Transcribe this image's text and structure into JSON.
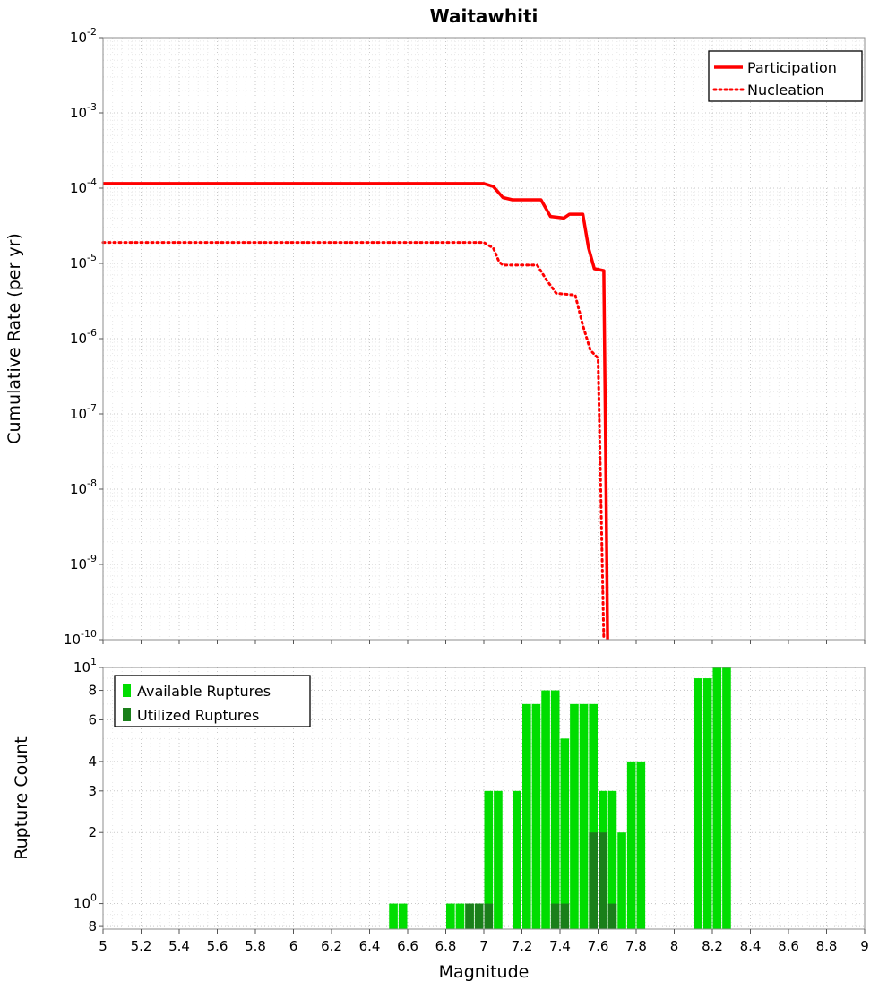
{
  "title": "Waitawhiti",
  "colors": {
    "participation": "#ff0000",
    "nucleation": "#ff0000",
    "available": "#00dd00",
    "utilized": "#1a7f1a",
    "grid_major": "#c9c9c9",
    "grid_minor": "#e7e7e7",
    "border": "#8c8c8c",
    "tick": "#555555"
  },
  "chart_data": [
    {
      "type": "line",
      "title": "Waitawhiti",
      "ylabel": "Cumulative Rate (per yr)",
      "xlim": [
        5,
        9
      ],
      "ylim": [
        1e-10,
        0.01
      ],
      "x_tick_step": 0.2,
      "y_scale": "log",
      "grid": true,
      "legend_position": "top-right",
      "series": [
        {
          "name": "Participation",
          "style": "solid",
          "points": [
            [
              5.0,
              0.000115
            ],
            [
              7.0,
              0.000115
            ],
            [
              7.05,
              0.000105
            ],
            [
              7.1,
              7.5e-05
            ],
            [
              7.15,
              7e-05
            ],
            [
              7.3,
              7e-05
            ],
            [
              7.35,
              4.2e-05
            ],
            [
              7.42,
              4e-05
            ],
            [
              7.45,
              4.5e-05
            ],
            [
              7.52,
              4.5e-05
            ],
            [
              7.55,
              1.6e-05
            ],
            [
              7.58,
              8.5e-06
            ],
            [
              7.63,
              8e-06
            ],
            [
              7.65,
              1e-10
            ]
          ]
        },
        {
          "name": "Nucleation",
          "style": "dotted",
          "points": [
            [
              5.0,
              1.9e-05
            ],
            [
              7.0,
              1.9e-05
            ],
            [
              7.05,
              1.6e-05
            ],
            [
              7.08,
              1.05e-05
            ],
            [
              7.1,
              9.5e-06
            ],
            [
              7.28,
              9.5e-06
            ],
            [
              7.33,
              6e-06
            ],
            [
              7.38,
              4e-06
            ],
            [
              7.48,
              3.8e-06
            ],
            [
              7.52,
              1.5e-06
            ],
            [
              7.56,
              7e-07
            ],
            [
              7.6,
              5.5e-07
            ],
            [
              7.63,
              1e-10
            ]
          ]
        }
      ]
    },
    {
      "type": "bar",
      "ylabel": "Rupture Count",
      "xlabel": "Magnitude",
      "xlim": [
        5,
        9
      ],
      "ylim": [
        0.78,
        10
      ],
      "y_scale": "log",
      "y_ticks": [
        10,
        8,
        6,
        4,
        3,
        2,
        1,
        0.8
      ],
      "bin_width": 0.05,
      "grid": true,
      "legend_position": "top-left",
      "series": [
        {
          "name": "Available Ruptures",
          "bars": [
            [
              6.5,
              1
            ],
            [
              6.55,
              1
            ],
            [
              6.8,
              1
            ],
            [
              6.85,
              1
            ],
            [
              6.9,
              1
            ],
            [
              6.95,
              1
            ],
            [
              7.0,
              3
            ],
            [
              7.05,
              3
            ],
            [
              7.15,
              3
            ],
            [
              7.2,
              7
            ],
            [
              7.25,
              7
            ],
            [
              7.3,
              8
            ],
            [
              7.35,
              8
            ],
            [
              7.4,
              5
            ],
            [
              7.45,
              7
            ],
            [
              7.5,
              7
            ],
            [
              7.55,
              7
            ],
            [
              7.6,
              3
            ],
            [
              7.65,
              3
            ],
            [
              7.7,
              2
            ],
            [
              7.75,
              4
            ],
            [
              7.8,
              4
            ],
            [
              8.1,
              9
            ],
            [
              8.15,
              9
            ],
            [
              8.2,
              10
            ],
            [
              8.25,
              10
            ]
          ]
        },
        {
          "name": "Utilized Ruptures",
          "bars": [
            [
              6.9,
              1
            ],
            [
              6.95,
              1
            ],
            [
              7.0,
              1
            ],
            [
              7.35,
              1
            ],
            [
              7.4,
              1
            ],
            [
              7.55,
              2
            ],
            [
              7.6,
              2
            ],
            [
              7.65,
              1
            ]
          ]
        }
      ]
    }
  ]
}
